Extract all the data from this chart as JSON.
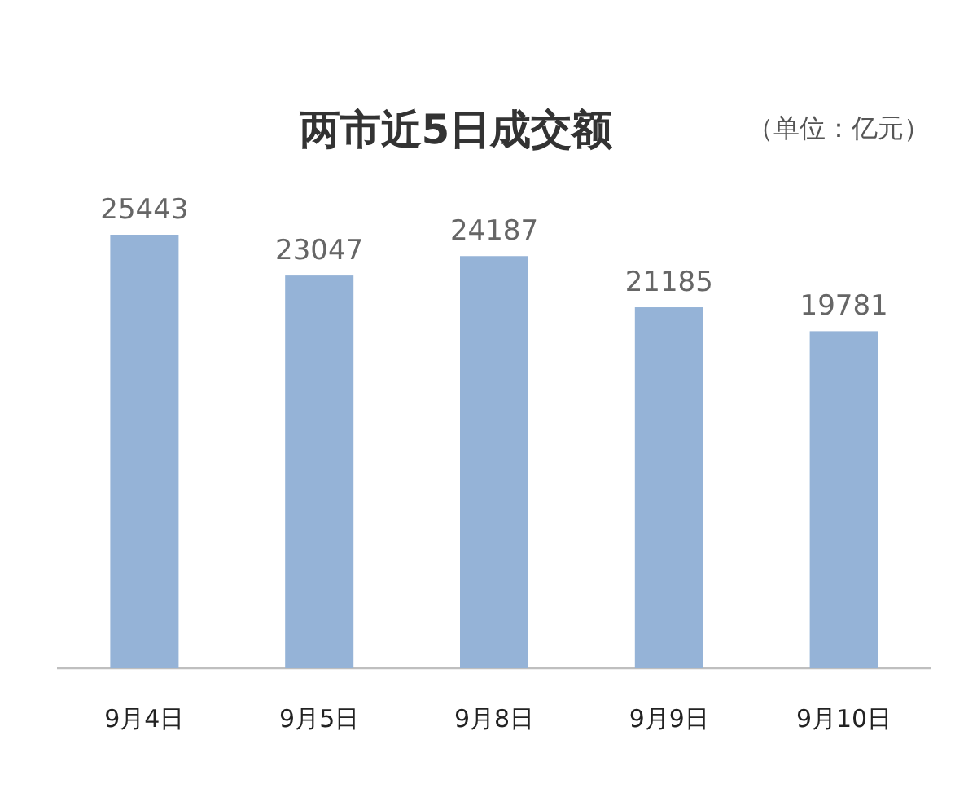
{
  "chart_data": {
    "type": "bar",
    "title": "两市近5日成交额",
    "subtitle": "（单位：亿元）",
    "categories": [
      "9月4日",
      "9月5日",
      "9月8日",
      "9月9日",
      "9月10日"
    ],
    "values": [
      25443,
      23047,
      24187,
      21185,
      19781
    ],
    "color": "#95b3d7",
    "data_labels": true
  }
}
